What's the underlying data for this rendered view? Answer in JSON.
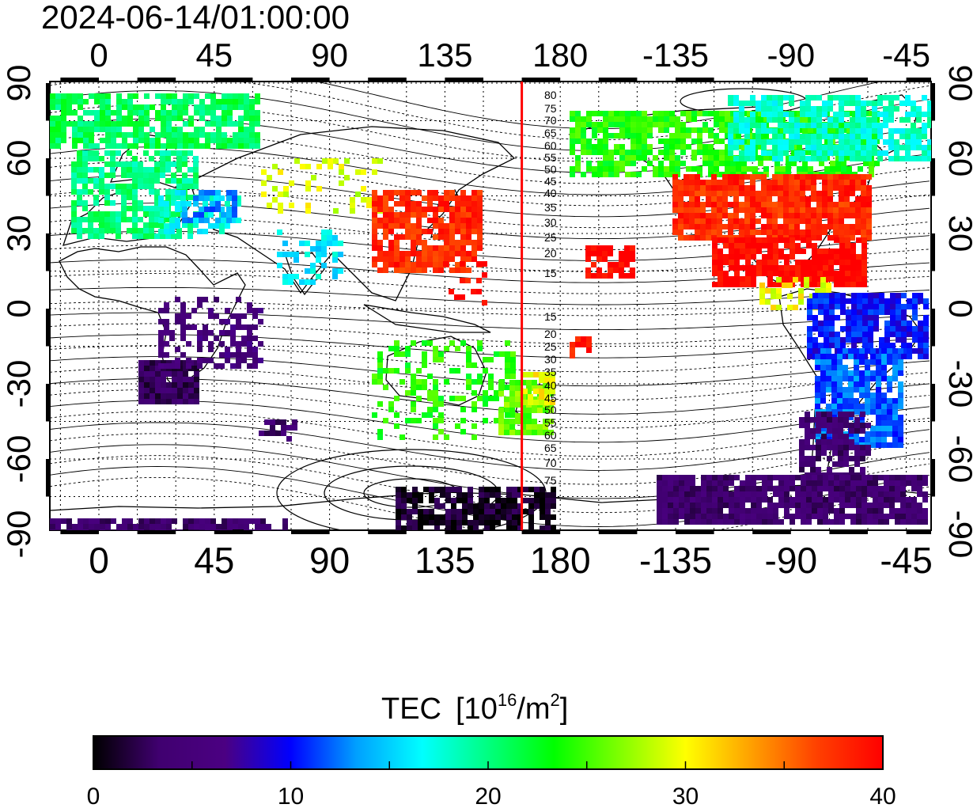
{
  "timestamp": "2024-06-14/01:00:00",
  "top_lon_labels": [
    "0",
    "45",
    "90",
    "135",
    "180",
    "-135",
    "-90",
    "-45"
  ],
  "bottom_lon_labels": [
    "0",
    "45",
    "90",
    "135",
    "180",
    "-135",
    "-90",
    "-45"
  ],
  "lat_labels": [
    "90",
    "60",
    "30",
    "0",
    "-30",
    "-60",
    "-90"
  ],
  "contour_labels_north": [
    "80",
    "75",
    "70",
    "65",
    "60",
    "55",
    "50",
    "45",
    "40",
    "35",
    "30",
    "25",
    "20",
    "15"
  ],
  "contour_labels_south": [
    "15",
    "20",
    "25",
    "30",
    "35",
    "40",
    "45",
    "50",
    "55",
    "60",
    "65",
    "70",
    "75"
  ],
  "colorbar": {
    "title": "TEC",
    "unit_base": "[10",
    "unit_exp": "16",
    "unit_mid": "/m",
    "unit_exp2": "2",
    "unit_close": "]",
    "ticks": [
      "0",
      "10",
      "20",
      "30",
      "40"
    ],
    "min": 0,
    "max": 40,
    "stops": [
      "#000000",
      "#400070",
      "#4b0082",
      "#0000ff",
      "#00a0ff",
      "#00ffff",
      "#00ff80",
      "#00ff00",
      "#80ff00",
      "#ffff00",
      "#ffa000",
      "#ff4000",
      "#ff0000"
    ]
  },
  "terminator_lon": 165,
  "colors": {
    "terminator": "#ff0000",
    "frame": "#000000"
  }
}
